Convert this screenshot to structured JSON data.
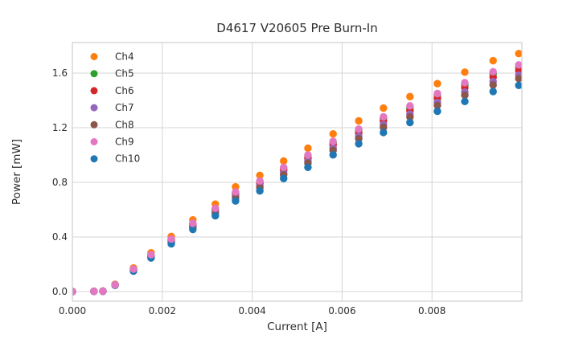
{
  "chart_data": {
    "type": "scatter",
    "title": "D4617 V20605 Pre Burn-In",
    "xlabel": "Current [A]",
    "ylabel": "Power [mW]",
    "xlim": [
      0.0,
      0.01
    ],
    "ylim": [
      -0.0706,
      1.8235
    ],
    "x_ticks": [
      0.0,
      0.002,
      0.004,
      0.006,
      0.008
    ],
    "x_tick_labels": [
      "0.000",
      "0.002",
      "0.004",
      "0.006",
      "0.008"
    ],
    "y_ticks": [
      0.0,
      0.4,
      0.8,
      1.2,
      1.6
    ],
    "y_tick_labels": [
      "0.0",
      "0.4",
      "0.8",
      "1.2",
      "1.6"
    ],
    "grid": true,
    "grid_color": "#d5d5d5",
    "spine_color": "#cfcfcf",
    "legend_position": "upper left",
    "x": [
      0.0,
      0.00048,
      0.00068,
      0.00095,
      0.00136,
      0.00175,
      0.0022,
      0.00268,
      0.00318,
      0.00363,
      0.00417,
      0.0047,
      0.00524,
      0.0058,
      0.00637,
      0.00692,
      0.00751,
      0.00812,
      0.00873,
      0.00936,
      0.00993
    ],
    "series": [
      {
        "name": "Ch4",
        "color": "#ff7f0e",
        "values": [
          0.0,
          0.002,
          0.003,
          0.053,
          0.173,
          0.284,
          0.404,
          0.525,
          0.641,
          0.767,
          0.851,
          0.956,
          1.05,
          1.155,
          1.25,
          1.344,
          1.428,
          1.523,
          1.607,
          1.691,
          1.743
        ]
      },
      {
        "name": "Ch5",
        "color": "#2ca02c",
        "values": [
          0.0,
          0.002,
          0.003,
          0.05,
          0.163,
          0.267,
          0.381,
          0.495,
          0.604,
          0.723,
          0.802,
          0.901,
          0.99,
          1.089,
          1.178,
          1.267,
          1.346,
          1.436,
          1.514,
          1.594,
          1.643
        ]
      },
      {
        "name": "Ch6",
        "color": "#d62728",
        "values": [
          0.0,
          0.002,
          0.003,
          0.049,
          0.161,
          0.263,
          0.375,
          0.488,
          0.595,
          0.712,
          0.79,
          0.887,
          0.975,
          1.073,
          1.16,
          1.248,
          1.326,
          1.414,
          1.492,
          1.57,
          1.619
        ]
      },
      {
        "name": "Ch7",
        "color": "#9467bd",
        "values": [
          0.0,
          0.002,
          0.003,
          0.048,
          0.158,
          0.258,
          0.368,
          0.478,
          0.583,
          0.697,
          0.774,
          0.869,
          0.955,
          1.051,
          1.136,
          1.222,
          1.299,
          1.385,
          1.461,
          1.538,
          1.585
        ]
      },
      {
        "name": "Ch8",
        "color": "#8c564b",
        "values": [
          0.0,
          0.002,
          0.003,
          0.047,
          0.155,
          0.254,
          0.362,
          0.47,
          0.573,
          0.686,
          0.761,
          0.855,
          0.94,
          1.034,
          1.119,
          1.203,
          1.278,
          1.363,
          1.438,
          1.513,
          1.56
        ]
      },
      {
        "name": "Ch9",
        "color": "#e377c2",
        "values": [
          0.0,
          0.002,
          0.003,
          0.05,
          0.165,
          0.27,
          0.385,
          0.5,
          0.61,
          0.73,
          0.81,
          0.91,
          1.0,
          1.1,
          1.19,
          1.28,
          1.36,
          1.45,
          1.53,
          1.61,
          1.66
        ]
      },
      {
        "name": "Ch10",
        "color": "#1f77b4",
        "values": [
          0.0,
          0.002,
          0.003,
          0.046,
          0.15,
          0.246,
          0.35,
          0.455,
          0.555,
          0.664,
          0.737,
          0.828,
          0.91,
          1.001,
          1.083,
          1.165,
          1.238,
          1.32,
          1.392,
          1.465,
          1.51
        ]
      }
    ]
  }
}
